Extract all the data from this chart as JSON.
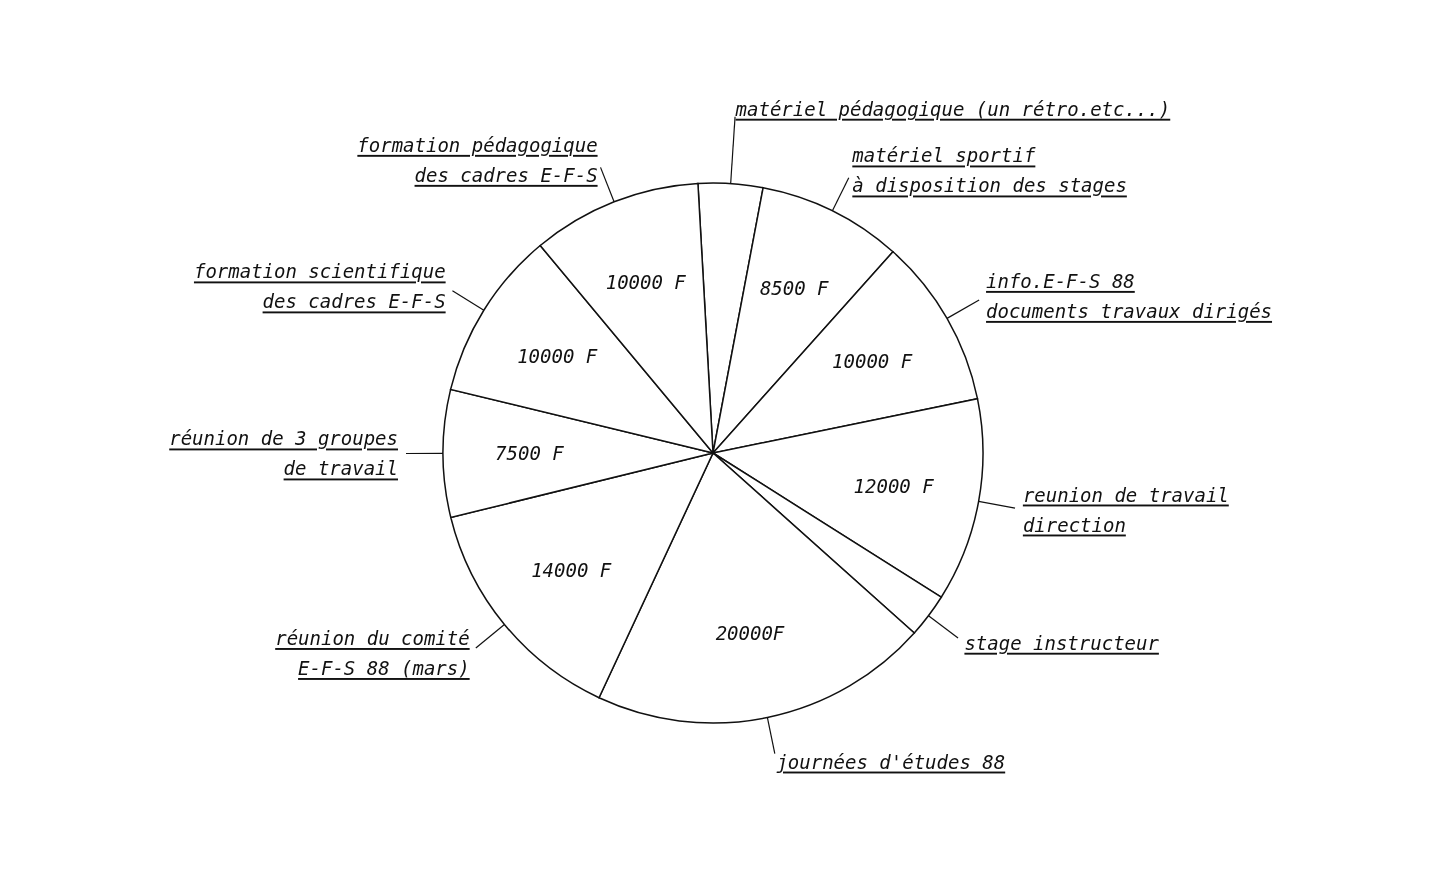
{
  "chart_data": {
    "type": "pie",
    "categories": [
      "matériel pédagogique (un rétro.etc...)",
      "matériel sportif\nà disposition des stages",
      "info.E-F-S 88\ndocuments travaux dirigés",
      "reunion de travail\ndirection",
      "stage instructeur",
      "journées d'études 88",
      "réunion du comité\nE-F-S 88 (mars)",
      "réunion de 3 groupes\nde travail",
      "formation scientifique\ndes cadres E-F-S",
      "formation pédagogique\ndes cadres E-F-S"
    ],
    "values": [
      3800,
      8500,
      10000,
      12000,
      2600,
      20000,
      14000,
      7500,
      10000,
      10000
    ],
    "value_labels": [
      null,
      "8500 F",
      "10000 F",
      "12000 F",
      null,
      "20000F",
      "14000 F",
      "7500 F",
      "10000 F",
      "10000 F"
    ],
    "colors": [
      "#ffffff",
      "#ffffff",
      "#ffffff",
      "#ffffff",
      "#ffffff",
      "#ffffff",
      "#ffffff",
      "#ffffff",
      "#ffffff",
      "#ffffff"
    ],
    "legend": false
  }
}
